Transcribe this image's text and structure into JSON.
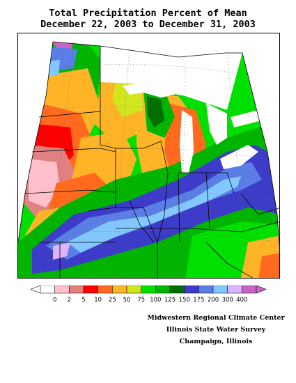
{
  "title_line1": "Total Precipitation Percent of Mean",
  "title_line2": "December 22, 2003 to December 31, 2003",
  "legend": {
    "colors": [
      "#ffffff",
      "#ffc0cb",
      "#e08080",
      "#ff0000",
      "#ff6a1e",
      "#ffb428",
      "#d2e61e",
      "#00e000",
      "#00b400",
      "#006e00",
      "#3c3cc8",
      "#5a7ee6",
      "#82c8ff",
      "#dcb4ff",
      "#c864c8"
    ],
    "labels": [
      "0",
      "2",
      "5",
      "10",
      "25",
      "50",
      "75",
      "100",
      "125",
      "150",
      "175",
      "200",
      "300",
      "400"
    ]
  },
  "credits": {
    "line1": "Midwestern Regional Climate Center",
    "line2": "Illinois State Water Survey",
    "line3": "Champaign, Illinois"
  }
}
